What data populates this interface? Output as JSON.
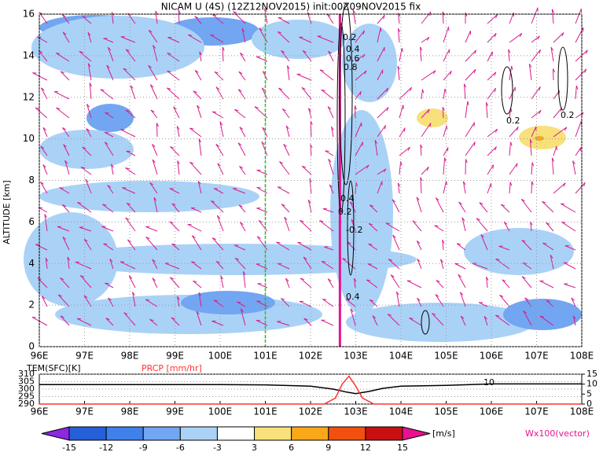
{
  "chart_data": [
    {
      "type": "contour",
      "title": "NICAM U (4S) (12Z12NOV2015) init:00Z09NOV2015 fix",
      "ylabel": "ALTITUDE [km]",
      "xlim": [
        96,
        108
      ],
      "xticks": [
        {
          "value": 96,
          "label": "96E"
        },
        {
          "value": 97,
          "label": "97E"
        },
        {
          "value": 98,
          "label": "98E"
        },
        {
          "value": 99,
          "label": "99E"
        },
        {
          "value": 100,
          "label": "100E"
        },
        {
          "value": 101,
          "label": "101E"
        },
        {
          "value": 102,
          "label": "102E"
        },
        {
          "value": 103,
          "label": "103E"
        },
        {
          "value": 104,
          "label": "104E"
        },
        {
          "value": 105,
          "label": "105E"
        },
        {
          "value": 106,
          "label": "106E"
        },
        {
          "value": 107,
          "label": "107E"
        },
        {
          "value": 108,
          "label": "108E"
        }
      ],
      "ylim": [
        0,
        16
      ],
      "yticks": [
        0,
        2,
        4,
        6,
        8,
        10,
        12,
        14,
        16
      ],
      "contour_labels": [
        "0.2",
        "0.4",
        "0.6",
        "0.8",
        "0.4",
        "0.2",
        "-0.2",
        "0.4",
        "0.2",
        "0.2"
      ]
    },
    {
      "type": "line",
      "xlim": [
        96,
        108
      ],
      "xticks": [
        {
          "value": 96,
          "label": "96E"
        },
        {
          "value": 97,
          "label": "97E"
        },
        {
          "value": 98,
          "label": "98E"
        },
        {
          "value": 99,
          "label": "99E"
        },
        {
          "value": 100,
          "label": "100E"
        },
        {
          "value": 101,
          "label": "101E"
        },
        {
          "value": 102,
          "label": "102E"
        },
        {
          "value": 103,
          "label": "103E"
        },
        {
          "value": 104,
          "label": "104E"
        },
        {
          "value": 105,
          "label": "105E"
        },
        {
          "value": 106,
          "label": "106E"
        },
        {
          "value": 107,
          "label": "107E"
        },
        {
          "value": 108,
          "label": "108E"
        }
      ],
      "ylim": [
        290,
        310
      ],
      "yticks": [
        290,
        295,
        300,
        305,
        310
      ],
      "y2lim": [
        0,
        15
      ],
      "y2ticks": [
        0,
        5,
        10,
        15
      ],
      "ylabel": "TEM(SFC)[K]",
      "y2label": "PRCP [mm/hr]",
      "annotation": "10",
      "series": [
        {
          "name": "TEM(SFC)[K]",
          "color": "#000000",
          "x": [
            96,
            97,
            98,
            99,
            100,
            101,
            102,
            102.5,
            102.8,
            103,
            103.3,
            103.6,
            104,
            105,
            106,
            107,
            108
          ],
          "values": [
            303,
            303,
            303,
            303,
            303,
            302.8,
            302,
            300,
            298,
            297,
            298.5,
            300.5,
            302,
            302.5,
            303.5,
            303.5,
            303.5
          ]
        },
        {
          "name": "PRCP [mm/hr]",
          "color": "#ff3333",
          "axis": "y2",
          "x": [
            96,
            102.3,
            102.55,
            102.7,
            102.85,
            103,
            103.15,
            103.4,
            108
          ],
          "values": [
            0,
            0,
            3,
            10,
            14,
            9,
            3,
            0,
            0
          ]
        }
      ]
    },
    {
      "type": "colorbar",
      "levels": [
        -15,
        -12,
        -9,
        -6,
        -3,
        3,
        6,
        9,
        12,
        15
      ],
      "colors": [
        "#8c28e0",
        "#2660d8",
        "#3f80ea",
        "#72a6f2",
        "#aad2f7",
        "#ffffff",
        "#f8e07a",
        "#f8a818",
        "#f25010",
        "#c81010",
        "#e81290"
      ],
      "unit": "[m/s]",
      "vector_label": "Wx100(vector)"
    }
  ]
}
